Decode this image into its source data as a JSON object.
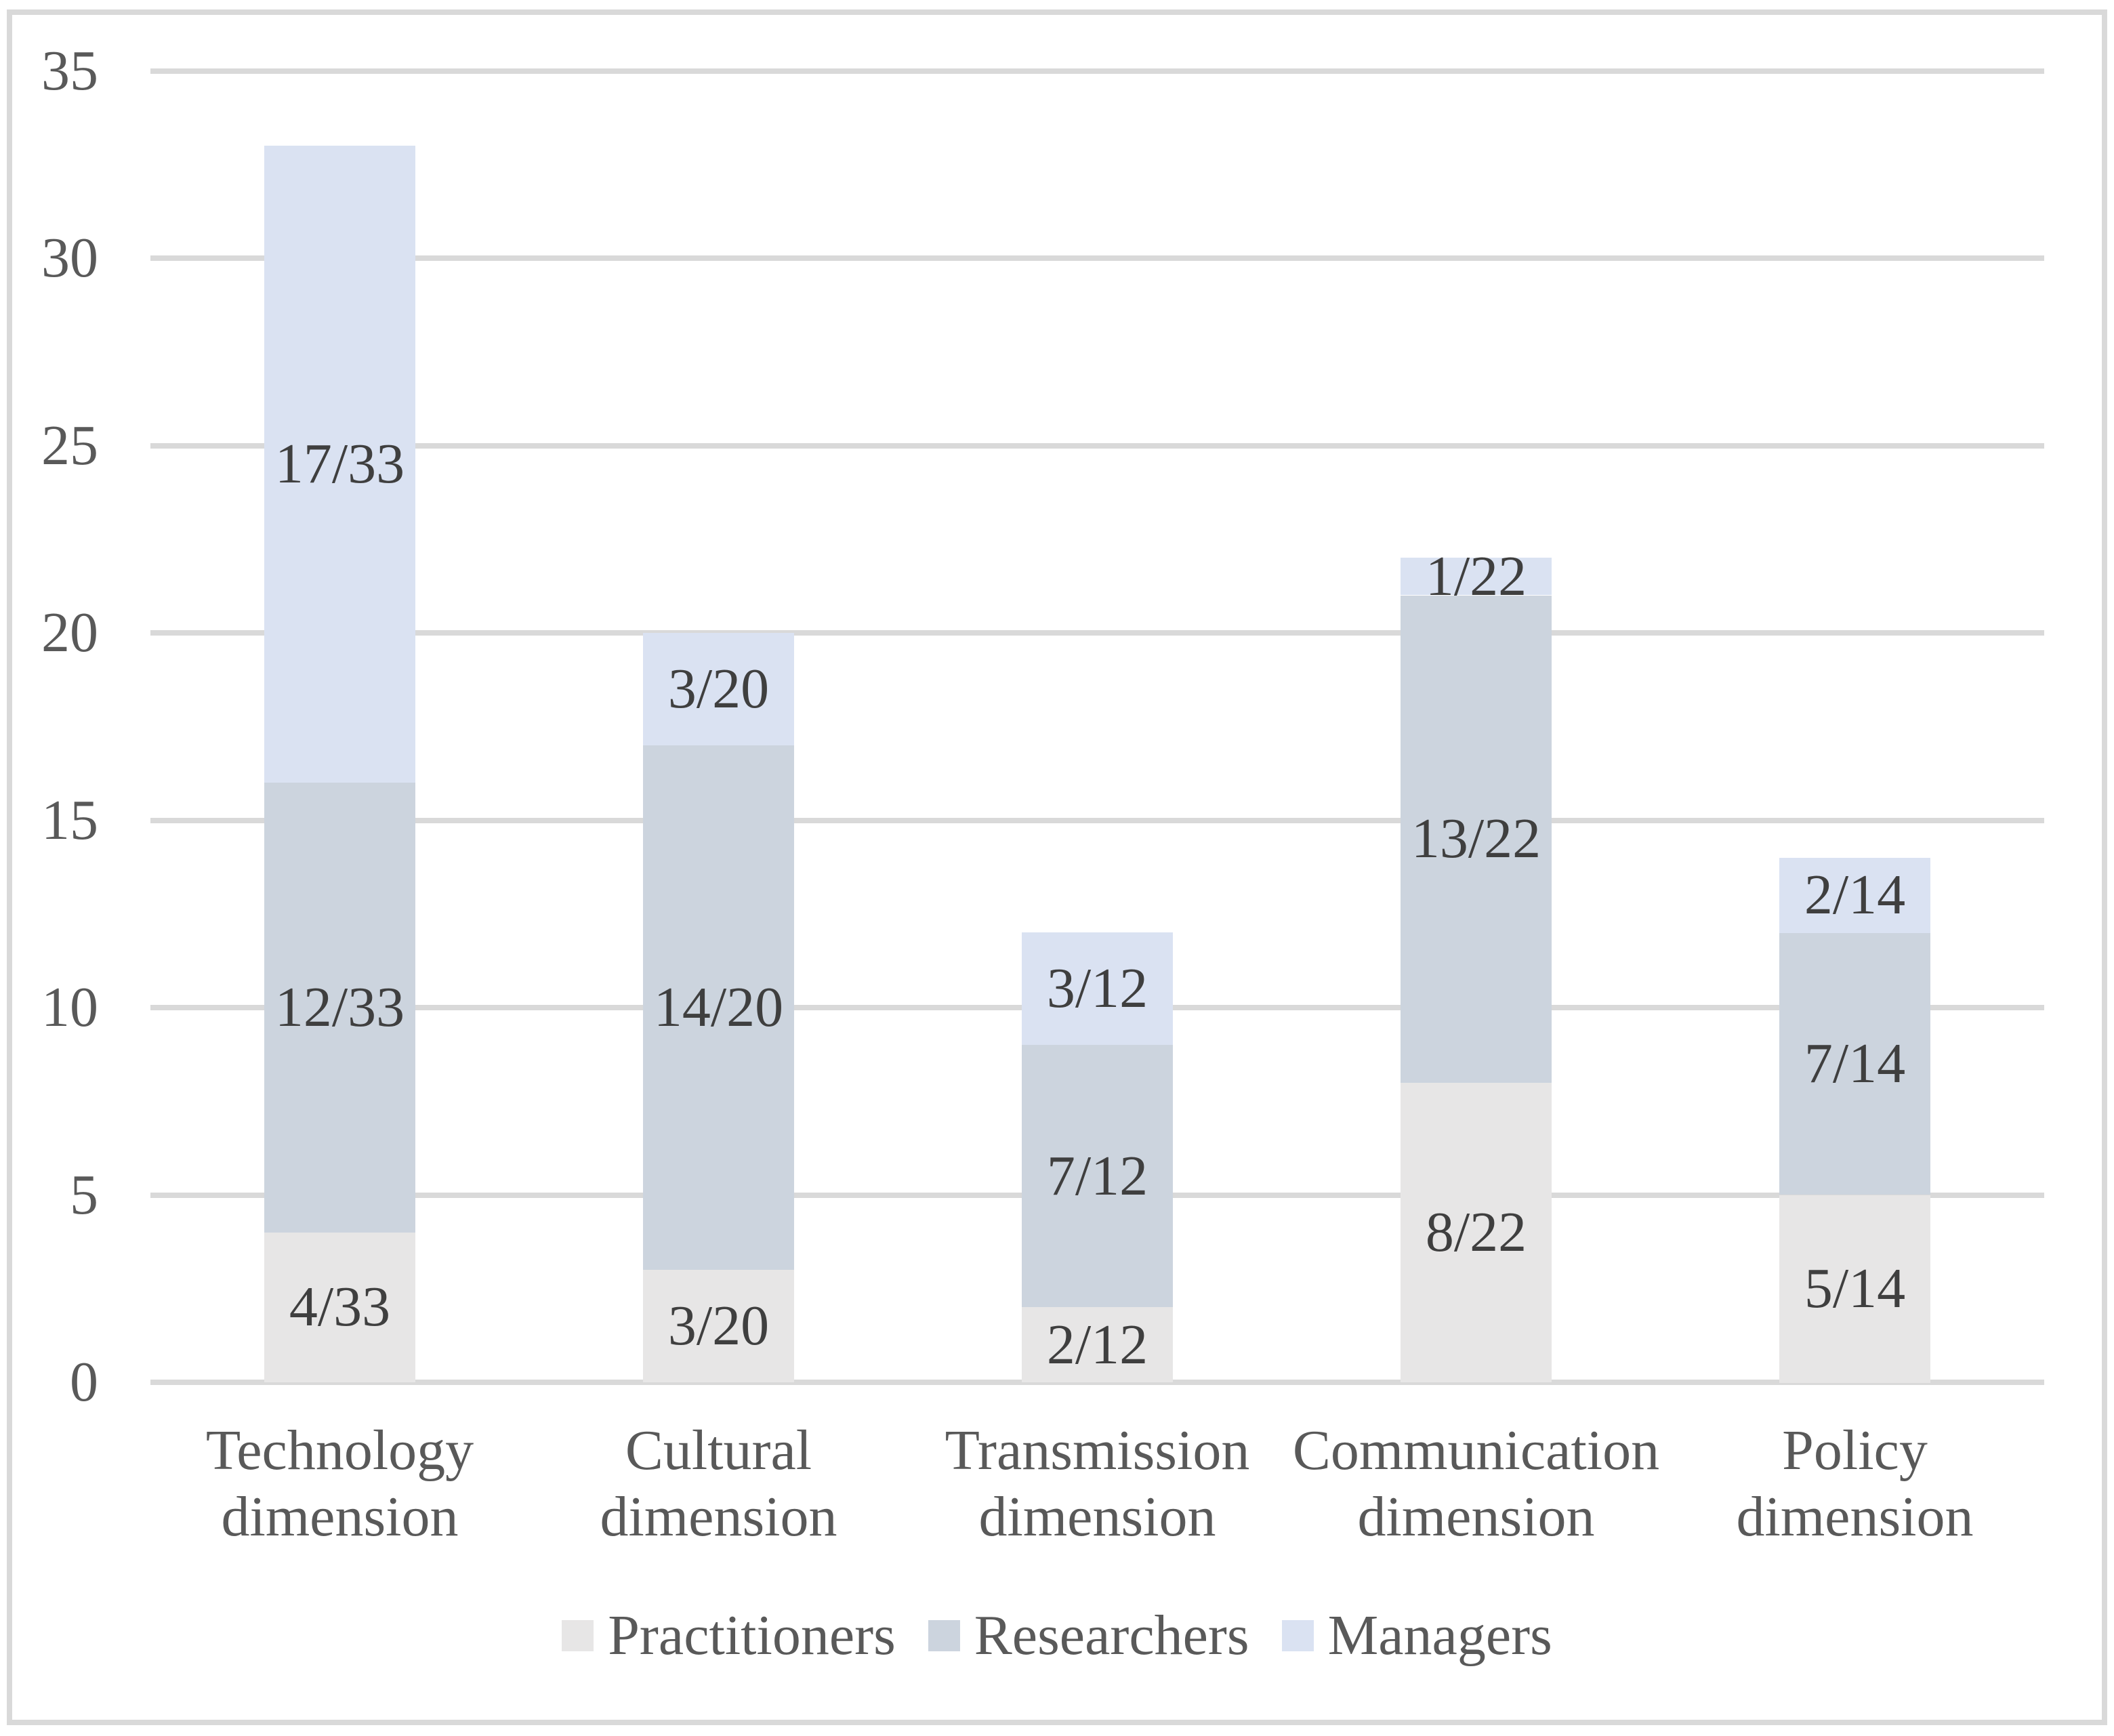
{
  "chart_data": {
    "type": "bar",
    "stacked": true,
    "title": "",
    "categories": [
      {
        "name": "Technology dimension",
        "lines": [
          "Technology",
          "dimension"
        ]
      },
      {
        "name": "Cultural dimension",
        "lines": [
          "Cultural",
          "dimension"
        ]
      },
      {
        "name": "Transmission dimension",
        "lines": [
          "Transmission",
          "dimension"
        ]
      },
      {
        "name": "Communication dimension",
        "lines": [
          "Communication",
          "dimension"
        ]
      },
      {
        "name": "Policy dimension",
        "lines": [
          "Policy",
          "dimension"
        ]
      }
    ],
    "totals": [
      33,
      20,
      12,
      22,
      14
    ],
    "series": [
      {
        "name": "Practitioners",
        "color": "#e7e6e6",
        "values": [
          4,
          3,
          2,
          8,
          5
        ],
        "data_labels": [
          "4/33",
          "3/20",
          "2/12",
          "8/22",
          "5/14"
        ]
      },
      {
        "name": "Researchers",
        "color": "#ccd4de",
        "values": [
          12,
          14,
          7,
          13,
          7
        ],
        "data_labels": [
          "12/33",
          "14/20",
          "7/12",
          "13/22",
          "7/14"
        ]
      },
      {
        "name": "Managers",
        "color": "#dae2f2",
        "values": [
          17,
          3,
          3,
          1,
          2
        ],
        "data_labels": [
          "17/33",
          "3/20",
          "3/12",
          "1/22",
          "2/14"
        ]
      }
    ],
    "y_axis": {
      "min": 0,
      "max": 35,
      "step": 5,
      "tick_labels": [
        "0",
        "5",
        "10",
        "15",
        "20",
        "25",
        "30",
        "35"
      ]
    },
    "legend": {
      "position": "bottom",
      "entries": [
        "Practitioners",
        "Researchers",
        "Managers"
      ]
    },
    "grid": true,
    "colors": {
      "background": "#ffffff",
      "gridline": "#d9d9d9",
      "border": "#d9d9d9",
      "data_label_text": "#3f3f3f",
      "axis_text": "#595959"
    }
  }
}
